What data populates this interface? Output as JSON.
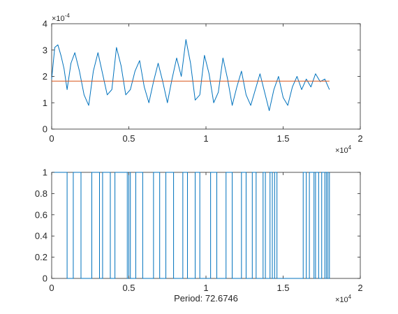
{
  "chart_data": [
    {
      "type": "line",
      "xlim": [
        0,
        20000
      ],
      "ylim": [
        0,
        0.0004
      ],
      "x_ticks": [
        0,
        5000,
        10000,
        15000,
        20000
      ],
      "x_tick_labels": [
        "0",
        "0.5",
        "1",
        "1.5",
        "2"
      ],
      "y_ticks": [
        0,
        0.0001,
        0.0002,
        0.0003,
        0.0004
      ],
      "y_tick_labels": [
        "0",
        "1",
        "2",
        "3",
        "4"
      ],
      "x_exponent_label": {
        "base": "×10",
        "exp": "4"
      },
      "y_exponent_label": {
        "base": "×10",
        "exp": "-4"
      },
      "grid": false,
      "series": [
        {
          "color": "#0072bd",
          "x": [
            0,
            200,
            400,
            600,
            800,
            1000,
            1250,
            1500,
            1800,
            2100,
            2400,
            2700,
            3000,
            3300,
            3600,
            3900,
            4200,
            4500,
            4800,
            5100,
            5400,
            5700,
            6000,
            6300,
            6600,
            6900,
            7200,
            7500,
            7800,
            8100,
            8400,
            8700,
            9000,
            9300,
            9600,
            9900,
            10200,
            10500,
            10800,
            11100,
            11400,
            11700,
            12000,
            12300,
            12600,
            12900,
            13200,
            13500,
            13800,
            14100,
            14400,
            14700,
            15000,
            15300,
            15600,
            15900,
            16200,
            16500,
            16800,
            17100,
            17400,
            17700,
            18000
          ],
          "y": [
            0.00019,
            0.00031,
            0.00032,
            0.00028,
            0.00023,
            0.00015,
            0.00025,
            0.00029,
            0.00022,
            0.00013,
            9e-05,
            0.00022,
            0.00029,
            0.00021,
            0.00013,
            0.00015,
            0.00031,
            0.00024,
            0.00013,
            0.00015,
            0.00022,
            0.00026,
            0.00016,
            0.0001,
            0.00018,
            0.00025,
            0.00018,
            0.0001,
            0.00019,
            0.00027,
            0.0002,
            0.00034,
            0.00025,
            0.00011,
            0.00013,
            0.00028,
            0.00021,
            0.0001,
            0.00014,
            0.00027,
            0.00019,
            9e-05,
            0.00016,
            0.00022,
            0.00013,
            9e-05,
            0.00015,
            0.00021,
            0.00014,
            7e-05,
            0.00015,
            0.0002,
            0.00012,
            9e-05,
            0.00016,
            0.0002,
            0.00015,
            0.00019,
            0.00016,
            0.00021,
            0.00018,
            0.00019,
            0.00015
          ]
        },
        {
          "color": "#d95319",
          "x": [
            0,
            18000
          ],
          "y": [
            0.000182,
            0.000182
          ]
        }
      ]
    },
    {
      "type": "line",
      "xlim": [
        0,
        20000
      ],
      "ylim": [
        0,
        1
      ],
      "x_ticks": [
        0,
        5000,
        10000,
        15000,
        20000
      ],
      "x_tick_labels": [
        "0",
        "0.5",
        "1",
        "1.5",
        "2"
      ],
      "y_ticks": [
        0,
        0.2,
        0.4,
        0.6,
        0.8,
        1
      ],
      "y_tick_labels": [
        "0",
        "0.2",
        "0.4",
        "0.6",
        "0.8",
        "1"
      ],
      "x_exponent_label": {
        "base": "×10",
        "exp": "4"
      },
      "xlabel": "Period: 72.6746",
      "grid": false,
      "series": [
        {
          "color": "#0072bd",
          "step": true,
          "x": [
            0,
            1000,
            1400,
            1900,
            2600,
            3100,
            3300,
            3800,
            4100,
            4900,
            5000,
            5100,
            5450,
            5900,
            6600,
            7000,
            7400,
            7900,
            8500,
            8800,
            9300,
            9600,
            10300,
            10700,
            11300,
            11700,
            12300,
            12600,
            13000,
            13250,
            13700,
            13850,
            14150,
            14300,
            14450,
            14600,
            16300,
            16500,
            16700,
            17000,
            17100,
            17300,
            17500,
            17700,
            17800,
            17900,
            18000
          ],
          "y": [
            1,
            0,
            1,
            0,
            1,
            0,
            1,
            0,
            1,
            0,
            1,
            0,
            1,
            0,
            1,
            0,
            1,
            0,
            1,
            0,
            1,
            0,
            1,
            0,
            1,
            0,
            1,
            0,
            1,
            0,
            1,
            0,
            1,
            0,
            1,
            0,
            1,
            0,
            1,
            0,
            1,
            0,
            1,
            0,
            1,
            0,
            1
          ]
        }
      ]
    }
  ]
}
